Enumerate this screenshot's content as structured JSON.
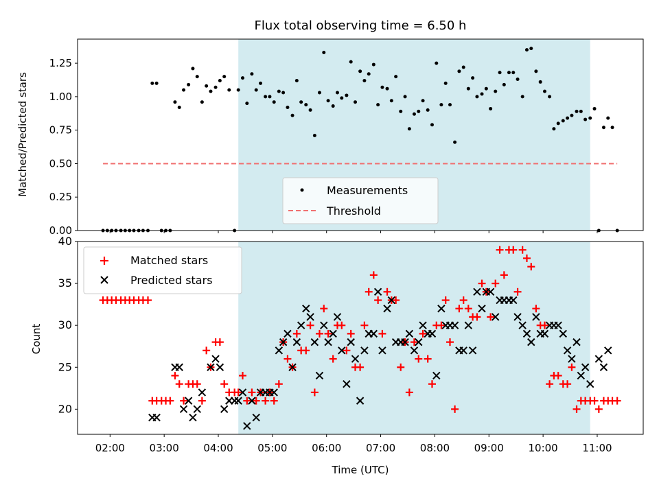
{
  "chart_data": [
    {
      "type": "scatter",
      "title": "Flux total observing time = 6.50 h",
      "ylabel": "Matched/Predicted stars",
      "xlim": [
        1.4,
        11.85
      ],
      "ylim": [
        0,
        1.43
      ],
      "yticks": [
        "0.00",
        "0.25",
        "0.50",
        "0.75",
        "1.00",
        "1.25"
      ],
      "grid": false,
      "legend_position": "lower center",
      "shaded_span": {
        "x_start": 4.37,
        "x_end": 10.87,
        "color": "#d3ebf0"
      },
      "series": [
        {
          "name": "Measurements",
          "kind": "points",
          "color": "#000000",
          "x": [
            1.87,
            1.95,
            2.03,
            2.11,
            2.2,
            2.28,
            2.36,
            2.44,
            2.53,
            2.61,
            2.7,
            2.78,
            2.86,
            2.95,
            3.03,
            3.11,
            3.2,
            3.28,
            3.36,
            3.45,
            3.53,
            3.61,
            3.7,
            3.78,
            3.86,
            3.95,
            4.03,
            4.11,
            4.2,
            4.3,
            4.37,
            4.45,
            4.53,
            4.62,
            4.7,
            4.78,
            4.87,
            4.95,
            5.03,
            5.12,
            5.2,
            5.28,
            5.37,
            5.45,
            5.53,
            5.62,
            5.7,
            5.78,
            5.87,
            5.95,
            6.03,
            6.12,
            6.2,
            6.28,
            6.37,
            6.45,
            6.53,
            6.62,
            6.7,
            6.78,
            6.87,
            6.95,
            7.03,
            7.12,
            7.2,
            7.28,
            7.37,
            7.45,
            7.53,
            7.62,
            7.7,
            7.78,
            7.87,
            7.95,
            8.03,
            8.12,
            8.2,
            8.28,
            8.37,
            8.45,
            8.53,
            8.62,
            8.7,
            8.78,
            8.87,
            8.95,
            9.03,
            9.12,
            9.2,
            9.28,
            9.37,
            9.45,
            9.53,
            9.62,
            9.7,
            9.78,
            9.87,
            9.95,
            10.03,
            10.12,
            10.2,
            10.28,
            10.37,
            10.45,
            10.53,
            10.62,
            10.7,
            10.78,
            10.87,
            10.95,
            11.03,
            11.12,
            11.2,
            11.28,
            11.37
          ],
          "y": [
            0.0,
            0.0,
            0.0,
            0.0,
            0.0,
            0.0,
            0.0,
            0.0,
            0.0,
            0.0,
            0.0,
            1.1,
            1.1,
            0.0,
            0.0,
            0.0,
            0.96,
            0.92,
            1.05,
            1.09,
            1.21,
            1.15,
            0.96,
            1.08,
            1.04,
            1.07,
            1.12,
            1.15,
            1.05,
            0.0,
            1.05,
            1.14,
            0.95,
            1.17,
            1.05,
            1.1,
            1.0,
            1.0,
            0.96,
            1.04,
            1.03,
            0.92,
            0.86,
            1.12,
            0.96,
            0.94,
            0.9,
            0.71,
            1.03,
            1.33,
            0.97,
            0.93,
            1.03,
            0.99,
            1.01,
            1.26,
            0.96,
            1.19,
            1.12,
            1.17,
            1.24,
            0.94,
            1.07,
            1.06,
            0.97,
            1.15,
            0.89,
            1.0,
            0.76,
            0.87,
            0.89,
            0.97,
            0.9,
            0.79,
            1.25,
            0.94,
            1.1,
            0.94,
            0.66,
            1.19,
            1.22,
            1.06,
            1.14,
            1.0,
            1.02,
            1.06,
            0.91,
            1.04,
            1.18,
            1.09,
            1.18,
            1.18,
            1.13,
            1.0,
            1.35,
            1.36,
            1.19,
            1.11,
            1.04,
            1.0,
            0.76,
            0.8,
            0.82,
            0.84,
            0.86,
            0.89,
            0.89,
            0.83,
            0.84,
            0.91,
            0.0,
            0.77,
            0.84,
            0.77,
            0.0
          ]
        },
        {
          "name": "Threshold",
          "kind": "dashed-line",
          "color": "#f07070",
          "x": [
            1.87,
            11.37
          ],
          "y": [
            0.5,
            0.5
          ]
        }
      ]
    },
    {
      "type": "scatter",
      "xlabel": "Time (UTC)",
      "ylabel": "Count",
      "xlim": [
        1.4,
        11.85
      ],
      "ylim": [
        17,
        40
      ],
      "xticks": [
        "02:00",
        "03:00",
        "04:00",
        "05:00",
        "06:00",
        "07:00",
        "08:00",
        "09:00",
        "10:00",
        "11:00"
      ],
      "yticks": [
        "20",
        "25",
        "30",
        "35",
        "40"
      ],
      "grid": false,
      "legend_position": "upper left",
      "shaded_span": {
        "x_start": 4.37,
        "x_end": 10.87,
        "color": "#d3ebf0"
      },
      "series": [
        {
          "name": "Matched stars",
          "marker": "plus",
          "color": "#ff0000",
          "x": [
            1.87,
            1.95,
            2.03,
            2.11,
            2.2,
            2.28,
            2.36,
            2.44,
            2.53,
            2.61,
            2.7,
            2.78,
            2.86,
            2.95,
            3.03,
            3.11,
            3.2,
            3.28,
            3.36,
            3.45,
            3.53,
            3.61,
            3.7,
            3.78,
            3.86,
            3.95,
            4.03,
            4.11,
            4.2,
            4.3,
            4.37,
            4.45,
            4.53,
            4.62,
            4.7,
            4.78,
            4.87,
            4.95,
            5.03,
            5.12,
            5.2,
            5.28,
            5.37,
            5.45,
            5.53,
            5.62,
            5.7,
            5.78,
            5.87,
            5.95,
            6.03,
            6.12,
            6.2,
            6.28,
            6.37,
            6.45,
            6.53,
            6.62,
            6.7,
            6.78,
            6.87,
            6.95,
            7.03,
            7.12,
            7.2,
            7.28,
            7.37,
            7.45,
            7.53,
            7.62,
            7.7,
            7.78,
            7.87,
            7.95,
            8.03,
            8.12,
            8.2,
            8.28,
            8.37,
            8.45,
            8.53,
            8.62,
            8.7,
            8.78,
            8.87,
            8.95,
            9.03,
            9.12,
            9.2,
            9.28,
            9.37,
            9.45,
            9.53,
            9.62,
            9.7,
            9.78,
            9.87,
            9.95,
            10.03,
            10.12,
            10.2,
            10.28,
            10.37,
            10.45,
            10.53,
            10.62,
            10.7,
            10.78,
            10.87,
            10.95,
            11.03,
            11.12,
            11.2,
            11.28,
            11.37
          ],
          "y": [
            33,
            33,
            33,
            33,
            33,
            33,
            33,
            33,
            33,
            33,
            33,
            21,
            21,
            21,
            21,
            21,
            24,
            23,
            21,
            23,
            23,
            23,
            21,
            27,
            25,
            28,
            28,
            23,
            22,
            22,
            22,
            24,
            21,
            22,
            21,
            22,
            21,
            22,
            21,
            23,
            28,
            26,
            25,
            29,
            27,
            27,
            30,
            22,
            29,
            32,
            29,
            26,
            30,
            30,
            27,
            29,
            25,
            25,
            30,
            34,
            36,
            33,
            29,
            34,
            33,
            33,
            25,
            28,
            22,
            28,
            26,
            29,
            26,
            23,
            30,
            30,
            33,
            28,
            20,
            32,
            33,
            32,
            31,
            31,
            35,
            34,
            31,
            35,
            39,
            36,
            39,
            39,
            34,
            39,
            38,
            37,
            32,
            30,
            30,
            23,
            24,
            24,
            23,
            23,
            25,
            20,
            21,
            21,
            21,
            21,
            20,
            21,
            21,
            21,
            21
          ]
        },
        {
          "name": "Predicted stars",
          "marker": "x",
          "color": "#000000",
          "x": [
            2.78,
            2.86,
            3.2,
            3.28,
            3.36,
            3.45,
            3.53,
            3.61,
            3.7,
            3.86,
            3.95,
            4.03,
            4.11,
            4.2,
            4.3,
            4.37,
            4.45,
            4.53,
            4.62,
            4.7,
            4.78,
            4.87,
            4.95,
            5.03,
            5.12,
            5.2,
            5.28,
            5.37,
            5.45,
            5.53,
            5.62,
            5.7,
            5.78,
            5.87,
            5.95,
            6.03,
            6.12,
            6.2,
            6.28,
            6.37,
            6.45,
            6.53,
            6.62,
            6.7,
            6.78,
            6.87,
            6.95,
            7.03,
            7.12,
            7.2,
            7.28,
            7.37,
            7.45,
            7.53,
            7.62,
            7.7,
            7.78,
            7.87,
            7.95,
            8.03,
            8.12,
            8.2,
            8.28,
            8.37,
            8.45,
            8.53,
            8.62,
            8.7,
            8.78,
            8.87,
            8.95,
            9.03,
            9.12,
            9.2,
            9.28,
            9.37,
            9.45,
            9.53,
            9.62,
            9.7,
            9.78,
            9.87,
            9.95,
            10.03,
            10.12,
            10.2,
            10.28,
            10.37,
            10.45,
            10.53,
            10.62,
            10.7,
            10.78,
            10.87,
            11.03,
            11.12,
            11.2
          ],
          "y": [
            19,
            19,
            25,
            25,
            20,
            21,
            19,
            20,
            22,
            25,
            26,
            25,
            20,
            21,
            21,
            21,
            22,
            18,
            21,
            19,
            22,
            22,
            22,
            22,
            27,
            28,
            29,
            25,
            28,
            30,
            32,
            31,
            28,
            24,
            30,
            28,
            29,
            31,
            27,
            23,
            28,
            26,
            21,
            27,
            29,
            29,
            34,
            27,
            32,
            33,
            28,
            28,
            28,
            29,
            27,
            28,
            30,
            29,
            29,
            24,
            32,
            30,
            30,
            30,
            27,
            27,
            30,
            27,
            34,
            32,
            34,
            34,
            31,
            33,
            33,
            33,
            33,
            31,
            30,
            29,
            28,
            31,
            29,
            29,
            30,
            30,
            30,
            29,
            27,
            26,
            28,
            24,
            25,
            23,
            26,
            25,
            27
          ]
        }
      ]
    }
  ]
}
